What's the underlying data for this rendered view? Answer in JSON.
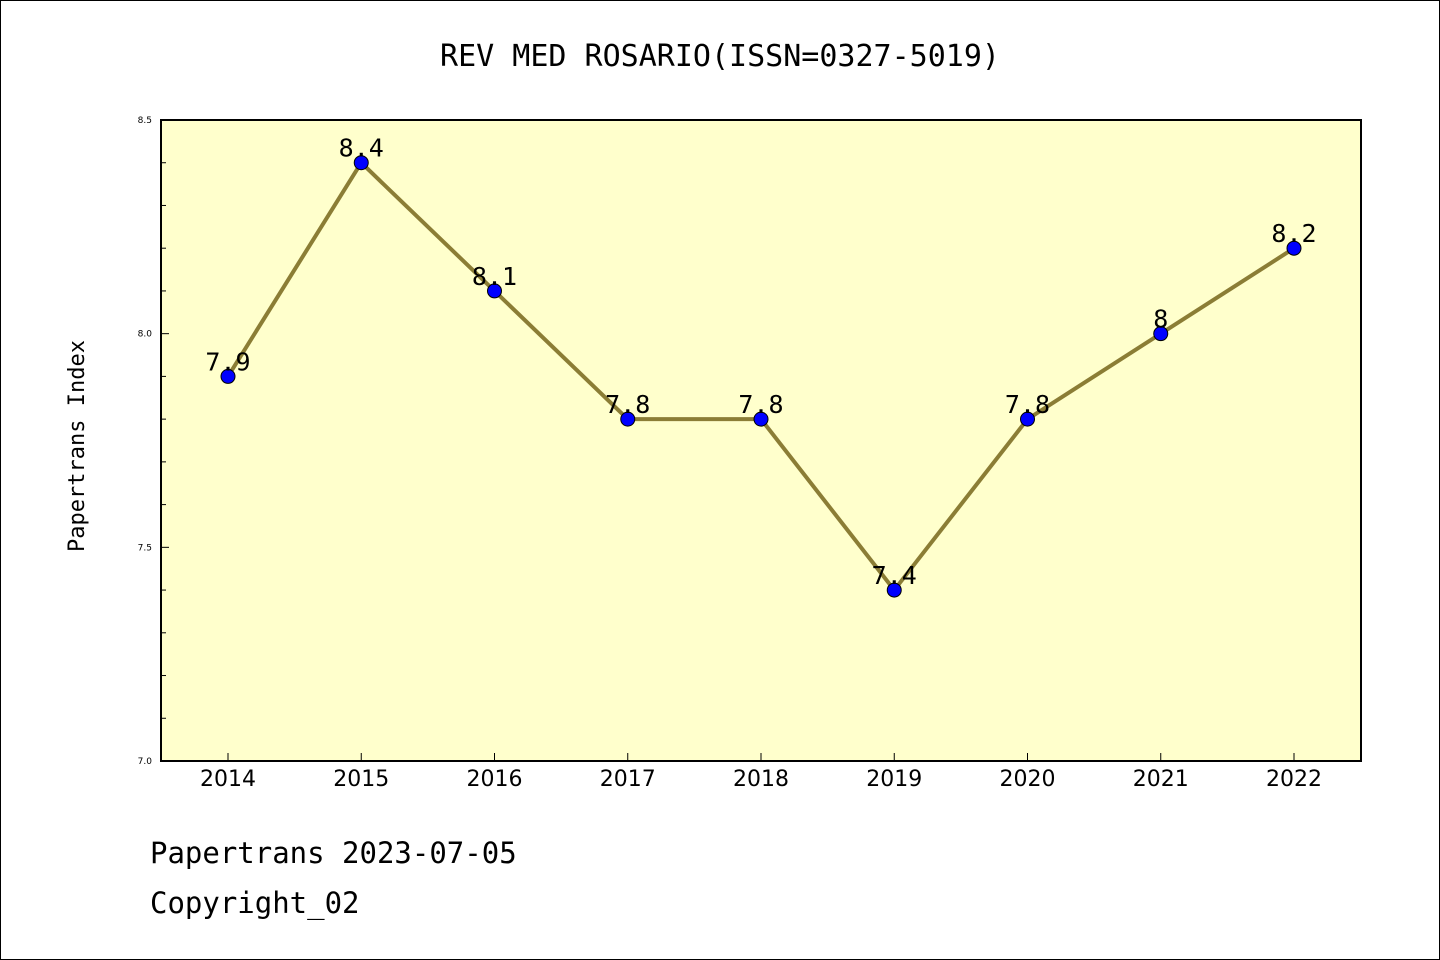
{
  "chart_data": {
    "type": "line",
    "title": "REV MED ROSARIO(ISSN=0327-5019)",
    "xlabel": "",
    "ylabel": "Papertrans Index",
    "categories": [
      "2014",
      "2015",
      "2016",
      "2017",
      "2018",
      "2019",
      "2020",
      "2021",
      "2022"
    ],
    "series": [
      {
        "values": [
          7.9,
          8.4,
          8.1,
          7.8,
          7.8,
          7.4,
          7.8,
          8.0,
          8.2
        ],
        "data_labels": [
          "7.9",
          "8.4",
          "8.1",
          "7.8",
          "7.8",
          "7.4",
          "7.8",
          "8",
          "8.2"
        ]
      }
    ],
    "ylim": [
      7.0,
      8.5
    ],
    "yticks": [
      "7.0",
      "7.5",
      "8.0",
      "8.5"
    ],
    "grid": false,
    "colors": {
      "plot_background": "#ffffcc",
      "line": "#8b7d35",
      "marker": "#0000ff"
    }
  },
  "footer": {
    "line1": "Papertrans 2023-07-05",
    "line2": "Copyright_02"
  }
}
